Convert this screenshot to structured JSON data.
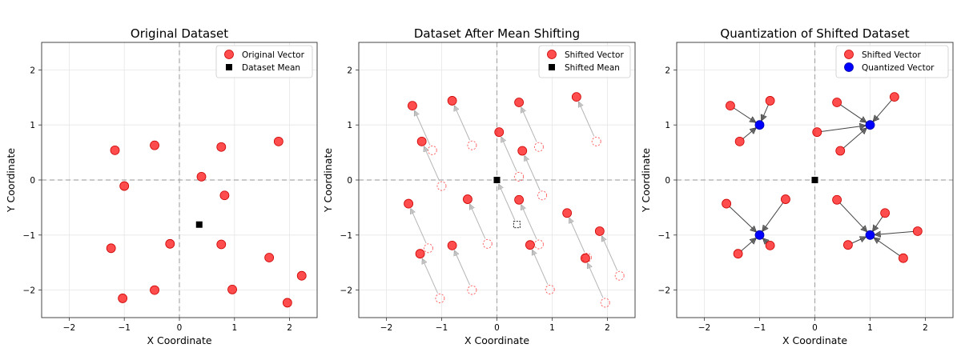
{
  "chart_data": [
    {
      "type": "scatter",
      "title": "Original Dataset",
      "xlabel": "X Coordinate",
      "ylabel": "Y Coordinate",
      "xlim": [
        -2.5,
        2.5
      ],
      "ylim": [
        -2.5,
        2.5
      ],
      "xticks": [
        -2,
        -1,
        0,
        1,
        2
      ],
      "yticks": [
        -2,
        -1,
        0,
        1,
        2
      ],
      "xtick_labels": [
        "−2",
        "−1",
        "0",
        "1",
        "2"
      ],
      "ytick_labels": [
        "−2",
        "−1",
        "0",
        "1",
        "2"
      ],
      "grid": true,
      "legend_position": "top-right",
      "legend": [
        {
          "label": "Original Vector",
          "marker": "circle",
          "color": "#ff2020"
        },
        {
          "label": "Dataset Mean",
          "marker": "square",
          "color": "#000000"
        }
      ],
      "points": [
        [
          -1.17,
          0.54
        ],
        [
          -0.45,
          0.63
        ],
        [
          0.76,
          0.6
        ],
        [
          1.8,
          0.7
        ],
        [
          -1.0,
          -0.11
        ],
        [
          0.4,
          0.06
        ],
        [
          0.82,
          -0.28
        ],
        [
          -1.24,
          -1.24
        ],
        [
          -0.17,
          -1.16
        ],
        [
          0.76,
          -1.17
        ],
        [
          1.63,
          -1.41
        ],
        [
          -0.45,
          -2.0
        ],
        [
          0.96,
          -1.99
        ],
        [
          2.22,
          -1.74
        ],
        [
          -1.03,
          -2.15
        ],
        [
          1.96,
          -2.23
        ]
      ],
      "mean": [
        0.36,
        -0.81
      ]
    },
    {
      "type": "scatter",
      "title": "Dataset After Mean Shifting",
      "xlabel": "X Coordinate",
      "ylabel": "Y Coordinate",
      "xlim": [
        -2.5,
        2.5
      ],
      "ylim": [
        -2.5,
        2.5
      ],
      "xticks": [
        -2,
        -1,
        0,
        1,
        2
      ],
      "yticks": [
        -2,
        -1,
        0,
        1,
        2
      ],
      "xtick_labels": [
        "−2",
        "−1",
        "0",
        "1",
        "2"
      ],
      "ytick_labels": [
        "−2",
        "−1",
        "0",
        "1",
        "2"
      ],
      "grid": true,
      "legend_position": "top-right",
      "legend": [
        {
          "label": "Shifted Vector",
          "marker": "circle",
          "color": "#ff2020"
        },
        {
          "label": "Shifted Mean",
          "marker": "square",
          "color": "#000000"
        }
      ],
      "original_points": [
        [
          -1.17,
          0.54
        ],
        [
          -0.45,
          0.63
        ],
        [
          0.76,
          0.6
        ],
        [
          1.8,
          0.7
        ],
        [
          -1.0,
          -0.11
        ],
        [
          0.4,
          0.06
        ],
        [
          0.82,
          -0.28
        ],
        [
          -1.24,
          -1.24
        ],
        [
          -0.17,
          -1.16
        ],
        [
          0.76,
          -1.17
        ],
        [
          1.63,
          -1.41
        ],
        [
          -0.45,
          -2.0
        ],
        [
          0.96,
          -1.99
        ],
        [
          2.22,
          -1.74
        ],
        [
          -1.03,
          -2.15
        ],
        [
          1.96,
          -2.23
        ]
      ],
      "points": [
        [
          -1.53,
          1.35
        ],
        [
          -0.81,
          1.44
        ],
        [
          0.4,
          1.41
        ],
        [
          1.44,
          1.51
        ],
        [
          -1.36,
          0.7
        ],
        [
          0.04,
          0.87
        ],
        [
          0.46,
          0.53
        ],
        [
          -1.6,
          -0.43
        ],
        [
          -0.53,
          -0.35
        ],
        [
          0.4,
          -0.36
        ],
        [
          1.27,
          -0.6
        ],
        [
          -0.81,
          -1.19
        ],
        [
          0.6,
          -1.18
        ],
        [
          1.86,
          -0.93
        ],
        [
          -1.39,
          -1.34
        ],
        [
          1.6,
          -1.42
        ]
      ],
      "original_mean": [
        0.36,
        -0.81
      ],
      "mean": [
        0.0,
        0.0
      ]
    },
    {
      "type": "scatter",
      "title": "Quantization of Shifted Dataset",
      "xlabel": "X Coordinate",
      "ylabel": "Y Coordinate",
      "xlim": [
        -2.5,
        2.5
      ],
      "ylim": [
        -2.5,
        2.5
      ],
      "xticks": [
        -2,
        -1,
        0,
        1,
        2
      ],
      "yticks": [
        -2,
        -1,
        0,
        1,
        2
      ],
      "xtick_labels": [
        "−2",
        "−1",
        "0",
        "1",
        "2"
      ],
      "ytick_labels": [
        "−2",
        "−1",
        "0",
        "1",
        "2"
      ],
      "grid": true,
      "legend_position": "top-right",
      "legend": [
        {
          "label": "Shifted Vector",
          "marker": "circle",
          "color": "#ff2020"
        },
        {
          "label": "Quantized Vector",
          "marker": "circle",
          "color": "#0000ff"
        }
      ],
      "points": [
        [
          -1.53,
          1.35
        ],
        [
          -0.81,
          1.44
        ],
        [
          0.4,
          1.41
        ],
        [
          1.44,
          1.51
        ],
        [
          -1.36,
          0.7
        ],
        [
          0.04,
          0.87
        ],
        [
          0.46,
          0.53
        ],
        [
          -1.6,
          -0.43
        ],
        [
          -0.53,
          -0.35
        ],
        [
          0.4,
          -0.36
        ],
        [
          1.27,
          -0.6
        ],
        [
          -0.81,
          -1.19
        ],
        [
          0.6,
          -1.18
        ],
        [
          1.86,
          -0.93
        ],
        [
          -1.39,
          -1.34
        ],
        [
          1.6,
          -1.42
        ]
      ],
      "quantized": [
        [
          -1,
          1
        ],
        [
          -1,
          1
        ],
        [
          1,
          1
        ],
        [
          1,
          1
        ],
        [
          -1,
          1
        ],
        [
          1,
          1
        ],
        [
          1,
          1
        ],
        [
          -1,
          -1
        ],
        [
          -1,
          -1
        ],
        [
          1,
          -1
        ],
        [
          1,
          -1
        ],
        [
          -1,
          -1
        ],
        [
          1,
          -1
        ],
        [
          1,
          -1
        ],
        [
          -1,
          -1
        ],
        [
          1,
          -1
        ]
      ],
      "centroids": [
        [
          -1,
          1
        ],
        [
          1,
          1
        ],
        [
          -1,
          -1
        ],
        [
          1,
          -1
        ]
      ],
      "mean": [
        0.0,
        0.0
      ]
    }
  ]
}
